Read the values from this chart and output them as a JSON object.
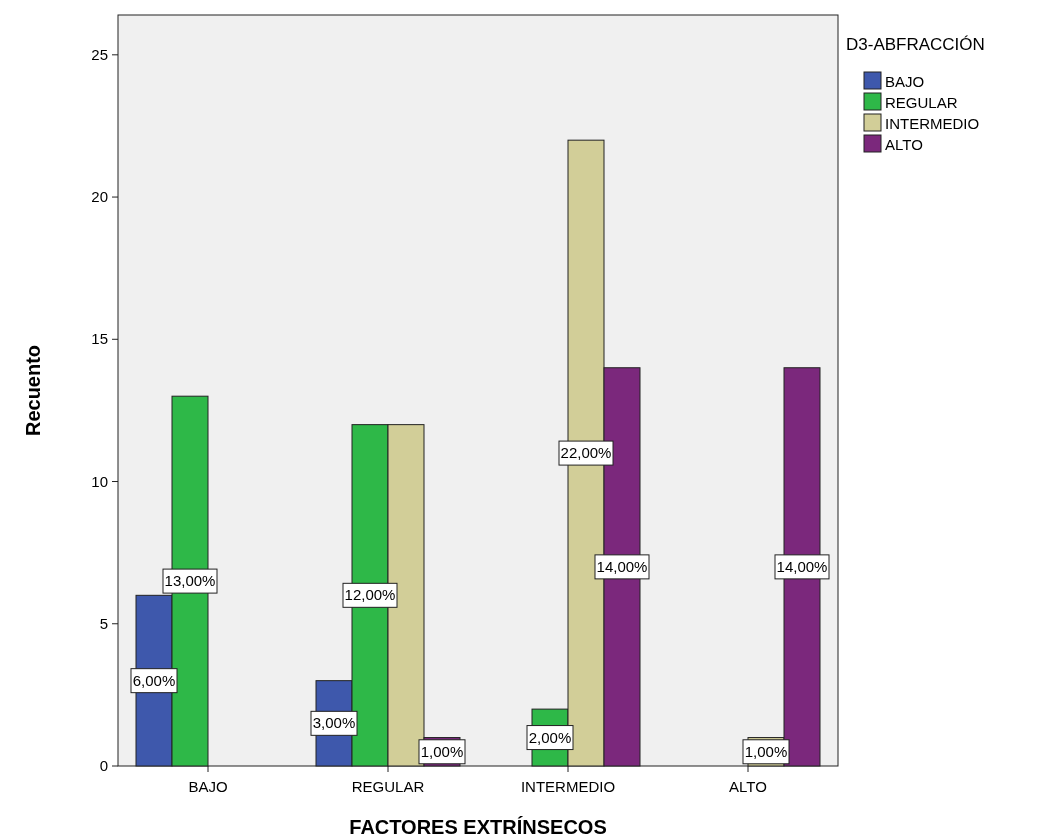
{
  "chart_data": {
    "type": "bar",
    "xlabel": "FACTORES EXTRÍNSECOS",
    "ylabel": "Recuento",
    "legend_title": "D3-ABFRACCIÓN",
    "legend": "top right",
    "categories": [
      "BAJO",
      "REGULAR",
      "INTERMEDIO",
      "ALTO"
    ],
    "ylim": [
      0,
      26.4
    ],
    "yticks": [
      0,
      5,
      10,
      15,
      20,
      25
    ],
    "grid": false,
    "series": [
      {
        "name": "BAJO",
        "color": "#3e58ac",
        "values": [
          6,
          3,
          0,
          0
        ],
        "value_labels": [
          "6,00%",
          "3,00%",
          null,
          null
        ]
      },
      {
        "name": "REGULAR",
        "color": "#2eb848",
        "values": [
          13,
          12,
          2,
          0
        ],
        "value_labels": [
          "13,00%",
          "12,00%",
          "2,00%",
          null
        ]
      },
      {
        "name": "INTERMEDIO",
        "color": "#d2ce98",
        "values": [
          0,
          12,
          22,
          1
        ],
        "value_labels": [
          null,
          null,
          "22,00%",
          "1,00%"
        ]
      },
      {
        "name": "ALTO",
        "color": "#7b287c",
        "values": [
          0,
          1,
          14,
          14
        ],
        "value_labels": [
          null,
          "1,00%",
          "14,00%",
          "14,00%"
        ]
      }
    ]
  }
}
